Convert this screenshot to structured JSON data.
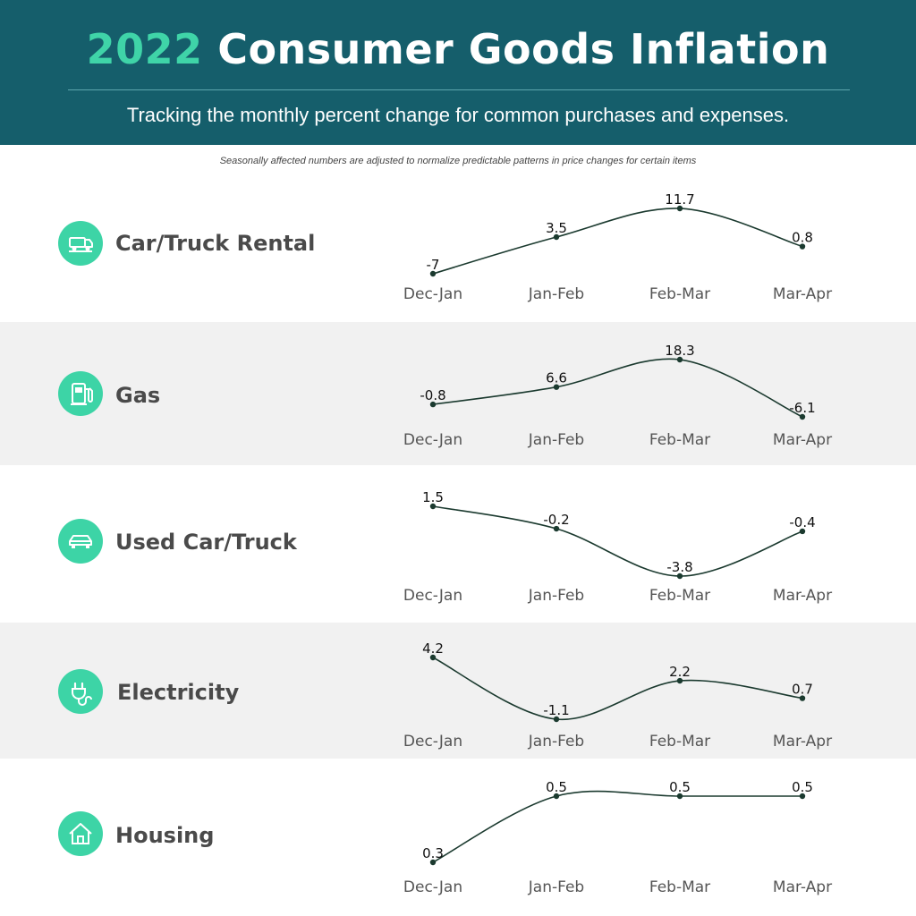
{
  "header": {
    "title_year": "2022",
    "title_rest": "Consumer Goods Inflation",
    "subtitle": "Tracking the monthly percent change for common purchases and expenses."
  },
  "note": "Seasonally affected numbers are adjusted to normalize predictable patterns in price changes for certain items",
  "colors": {
    "header_bg": "#155e6b",
    "accent": "#3dd4a6",
    "band_shade": "#f1f1f1",
    "line": "#1b3a2f"
  },
  "categories": [
    {
      "label": "Car/Truck Rental",
      "icon": "car-rental-icon",
      "shaded": false
    },
    {
      "label": "Gas",
      "icon": "gas-pump-icon",
      "shaded": true
    },
    {
      "label": "Used Car/Truck",
      "icon": "car-icon",
      "shaded": false
    },
    {
      "label": "Electricity",
      "icon": "plug-icon",
      "shaded": true
    },
    {
      "label": "Housing",
      "icon": "house-icon",
      "shaded": false
    }
  ],
  "chart_data": [
    {
      "type": "line",
      "title": "Car/Truck Rental",
      "categories": [
        "Dec-Jan",
        "Jan-Feb",
        "Feb-Mar",
        "Mar-Apr"
      ],
      "values": [
        -7,
        3.5,
        11.7,
        0.8
      ],
      "labels": [
        "-7",
        "3.5",
        "11.7",
        "0.8"
      ]
    },
    {
      "type": "line",
      "title": "Gas",
      "categories": [
        "Dec-Jan",
        "Jan-Feb",
        "Feb-Mar",
        "Mar-Apr"
      ],
      "values": [
        -0.8,
        6.6,
        18.3,
        -6.1
      ],
      "labels": [
        "-0.8",
        "6.6",
        "18.3",
        "-6.1"
      ]
    },
    {
      "type": "line",
      "title": "Used Car/Truck",
      "categories": [
        "Dec-Jan",
        "Jan-Feb",
        "Feb-Mar",
        "Mar-Apr"
      ],
      "values": [
        1.5,
        -0.2,
        -3.8,
        -0.4
      ],
      "labels": [
        "1.5",
        "-0.2",
        "-3.8",
        "-0.4"
      ]
    },
    {
      "type": "line",
      "title": "Electricity",
      "categories": [
        "Dec-Jan",
        "Jan-Feb",
        "Feb-Mar",
        "Mar-Apr"
      ],
      "values": [
        4.2,
        -1.1,
        2.2,
        0.7
      ],
      "labels": [
        "4.2",
        "-1.1",
        "2.2",
        "0.7"
      ]
    },
    {
      "type": "line",
      "title": "Housing",
      "categories": [
        "Dec-Jan",
        "Jan-Feb",
        "Feb-Mar",
        "Mar-Apr"
      ],
      "values": [
        0.3,
        0.5,
        0.5,
        0.5
      ],
      "labels": [
        "0.3",
        "0.5",
        "0.5",
        "0.5"
      ]
    }
  ]
}
